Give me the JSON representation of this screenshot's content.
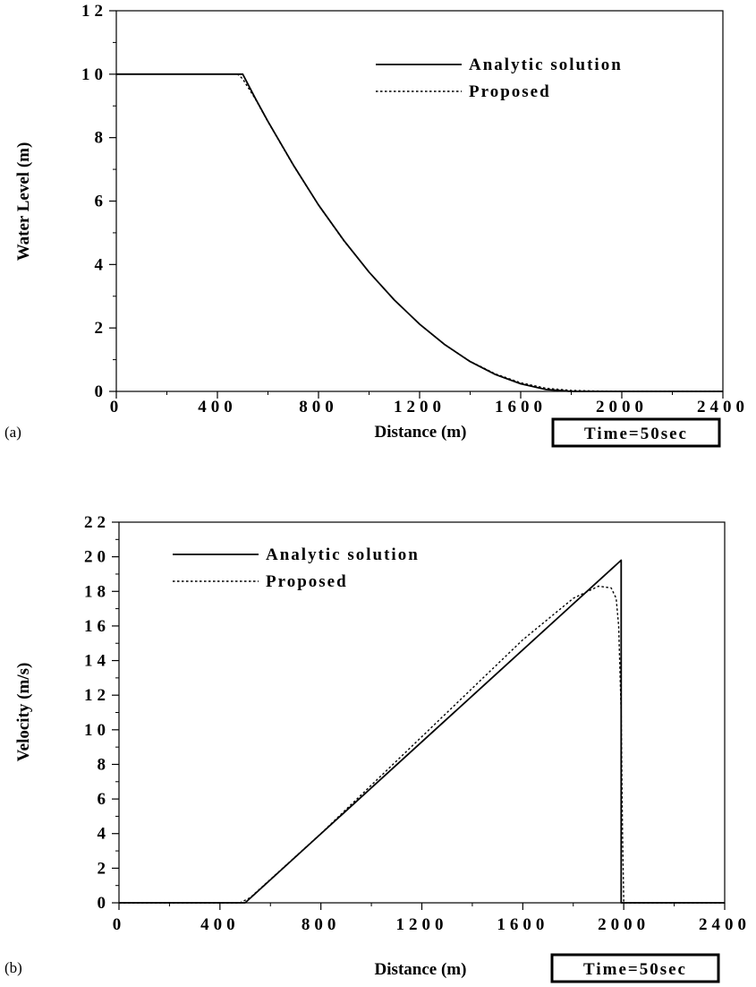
{
  "chart_data": [
    {
      "type": "line",
      "panel_label": "(a)",
      "xlabel": "Distance  (m)",
      "ylabel": "Water Level (m)",
      "xlim": [
        0,
        2400
      ],
      "ylim": [
        0,
        12
      ],
      "xticks": [
        0,
        400,
        800,
        1200,
        1600,
        2000,
        2400
      ],
      "yticks": [
        0,
        2,
        4,
        6,
        8,
        10,
        12
      ],
      "xtick_labels": [
        "0",
        "400",
        "800",
        "1200",
        "1600",
        "2000",
        "2400"
      ],
      "ytick_labels": [
        "0",
        "2",
        "4",
        "6",
        "8",
        "10",
        "12"
      ],
      "time_label": "Time=50sec",
      "legend_position": "top-right",
      "series": [
        {
          "name": "Analytic solution",
          "style": "solid",
          "x": [
            0,
            500,
            550,
            600,
            700,
            800,
            900,
            1000,
            1100,
            1200,
            1300,
            1400,
            1500,
            1600,
            1700,
            1800,
            1900,
            1990,
            2400
          ],
          "y": [
            10,
            10,
            9.24,
            8.51,
            7.14,
            5.88,
            4.76,
            3.76,
            2.88,
            2.12,
            1.47,
            0.94,
            0.53,
            0.24,
            0.06,
            0.0,
            0.0,
            0.0,
            0.0
          ]
        },
        {
          "name": "Proposed",
          "style": "dotted",
          "x": [
            0,
            480,
            500,
            520,
            550,
            600,
            700,
            800,
            900,
            1000,
            1100,
            1200,
            1300,
            1400,
            1500,
            1600,
            1700,
            1800,
            1900,
            2000,
            2400
          ],
          "y": [
            10,
            10,
            9.85,
            9.6,
            9.22,
            8.5,
            7.13,
            5.87,
            4.75,
            3.76,
            2.88,
            2.12,
            1.47,
            0.95,
            0.55,
            0.27,
            0.1,
            0.03,
            0.01,
            0.0,
            0.0
          ]
        }
      ]
    },
    {
      "type": "line",
      "panel_label": "(b)",
      "xlabel": "Distance  (m)",
      "ylabel": "Velocity  (m/s)",
      "xlim": [
        0,
        2400
      ],
      "ylim": [
        0,
        22
      ],
      "xticks": [
        0,
        400,
        800,
        1200,
        1600,
        2000,
        2400
      ],
      "yticks": [
        0,
        2,
        4,
        6,
        8,
        10,
        12,
        14,
        16,
        18,
        20,
        22
      ],
      "xtick_labels": [
        "0",
        "400",
        "800",
        "1200",
        "1600",
        "2000",
        "2400"
      ],
      "ytick_labels": [
        "0",
        "2",
        "4",
        "6",
        "8",
        "10",
        "12",
        "14",
        "16",
        "18",
        "20",
        "22"
      ],
      "time_label": "Time=50sec",
      "legend_position": "top-left",
      "series": [
        {
          "name": "Analytic solution",
          "style": "solid",
          "x": [
            0,
            500,
            1990,
            1990,
            2400
          ],
          "y": [
            0,
            0,
            19.8,
            0,
            0
          ]
        },
        {
          "name": "Proposed",
          "style": "dotted",
          "x": [
            0,
            480,
            520,
            800,
            1200,
            1600,
            1800,
            1900,
            1950,
            1970,
            1980,
            1990,
            1995,
            2000,
            2400
          ],
          "y": [
            0,
            0,
            0.3,
            4.0,
            9.6,
            15.2,
            17.6,
            18.3,
            18.2,
            17.6,
            16.0,
            11.0,
            4.0,
            0,
            0
          ]
        }
      ]
    }
  ]
}
